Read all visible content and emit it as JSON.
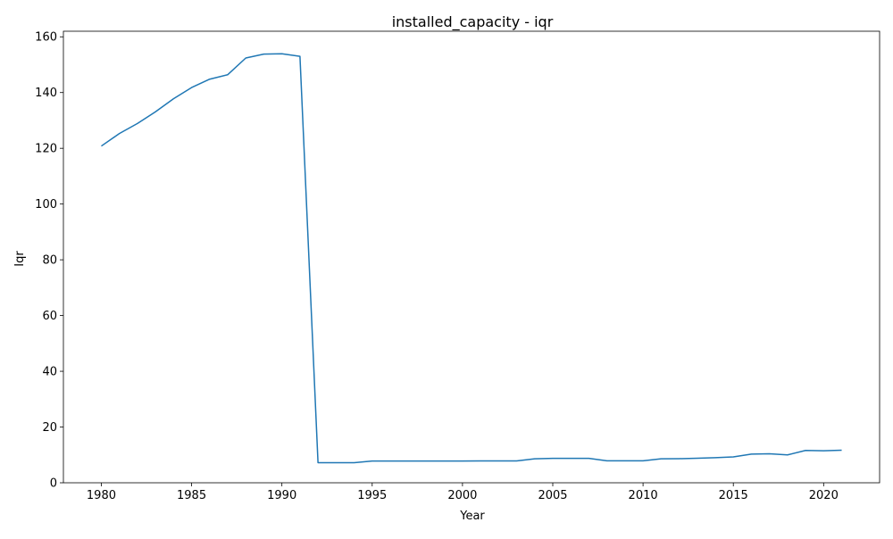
{
  "chart_data": {
    "type": "line",
    "title": "installed_capacity - iqr",
    "xlabel": "Year",
    "ylabel": "Iqr",
    "xlim": [
      1977.9,
      2023.1
    ],
    "ylim": [
      0,
      162
    ],
    "xticks": [
      1980,
      1985,
      1990,
      1995,
      2000,
      2005,
      2010,
      2015,
      2020
    ],
    "yticks": [
      0,
      20,
      40,
      60,
      80,
      100,
      120,
      140,
      160
    ],
    "grid": false,
    "series": [
      {
        "color": "#1f77b4",
        "x": [
          1980,
          1981,
          1982,
          1983,
          1984,
          1985,
          1986,
          1987,
          1988,
          1989,
          1990,
          1991,
          1992,
          1993,
          1994,
          1995,
          1996,
          1997,
          1998,
          1999,
          2000,
          2001,
          2002,
          2003,
          2004,
          2005,
          2006,
          2007,
          2008,
          2009,
          2010,
          2011,
          2012,
          2013,
          2014,
          2015,
          2016,
          2017,
          2018,
          2019,
          2020,
          2021
        ],
        "y": [
          120.8,
          125.3,
          128.9,
          133.1,
          137.8,
          141.8,
          144.8,
          146.4,
          152.4,
          153.8,
          153.9,
          153.0,
          7.2,
          7.2,
          7.2,
          7.8,
          7.8,
          7.8,
          7.8,
          7.8,
          7.8,
          7.85,
          7.85,
          7.85,
          8.6,
          8.75,
          8.75,
          8.75,
          7.9,
          7.9,
          7.9,
          8.6,
          8.65,
          8.8,
          9.0,
          9.3,
          10.3,
          10.4,
          10.0,
          11.6,
          11.5,
          11.7
        ]
      }
    ]
  }
}
